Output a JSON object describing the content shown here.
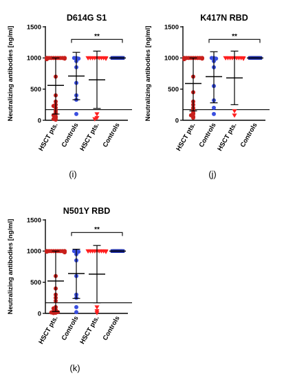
{
  "y_axis_label": "Neutralizing antibodies [ng/ml]",
  "categories": [
    "HSCT pts.",
    "Controls",
    "HSCT pts.",
    "Controls"
  ],
  "colors": {
    "hsct_first": "#c8201c",
    "controls_first": "#3a4fe0",
    "hsct_second": "#ff1f1f",
    "controls_second": "#1f2fa8"
  },
  "chart_data": [
    {
      "type": "scatter",
      "title": "D614G S1",
      "panel_label": "(i)",
      "ylim": [
        0,
        1500
      ],
      "yticks": [
        "0",
        "500",
        "1000",
        "1500"
      ],
      "significance": "**",
      "threshold": 170,
      "groups": [
        {
          "category": "HSCT pts.",
          "mean": 560,
          "sd_low": 100,
          "sd_high": 1000,
          "values": [
            1000,
            1000,
            1000,
            1000,
            1000,
            1000,
            1000,
            1000,
            1000,
            1000,
            1000,
            1000,
            1000,
            1000,
            990,
            980,
            700,
            400,
            300,
            250,
            230,
            200,
            150,
            120,
            100,
            80,
            60,
            40,
            20,
            10
          ]
        },
        {
          "category": "Controls",
          "mean": 710,
          "sd_low": 330,
          "sd_high": 1090,
          "values": [
            1000,
            1000,
            990,
            950,
            850,
            600,
            400,
            330,
            100
          ]
        },
        {
          "category": "HSCT pts.",
          "mean": 650,
          "sd_low": 190,
          "sd_high": 1110,
          "values": [
            1000,
            1000,
            1000,
            1000,
            1000,
            1000,
            1000,
            1000,
            1000,
            1000,
            990,
            100,
            40,
            20
          ]
        },
        {
          "category": "Controls",
          "mean": 1000,
          "sd_low": 1000,
          "sd_high": 1000,
          "values": [
            1000,
            1000,
            1000,
            1000,
            1000,
            1000,
            1000,
            1000,
            1000,
            1000
          ]
        }
      ]
    },
    {
      "type": "scatter",
      "title": "K417N RBD",
      "panel_label": "(j)",
      "ylim": [
        0,
        1500
      ],
      "yticks": [
        "0",
        "500",
        "1000",
        "1500"
      ],
      "significance": "**",
      "threshold": 170,
      "groups": [
        {
          "category": "HSCT pts.",
          "mean": 590,
          "sd_low": 150,
          "sd_high": 1000,
          "values": [
            1000,
            1000,
            1000,
            1000,
            1000,
            1000,
            1000,
            1000,
            1000,
            1000,
            1000,
            1000,
            990,
            980,
            700,
            450,
            300,
            250,
            200,
            180,
            150,
            120,
            100,
            80,
            60,
            40
          ]
        },
        {
          "category": "Controls",
          "mean": 700,
          "sd_low": 280,
          "sd_high": 1100,
          "values": [
            1000,
            1000,
            990,
            950,
            850,
            550,
            320,
            200,
            100
          ]
        },
        {
          "category": "HSCT pts.",
          "mean": 680,
          "sd_low": 250,
          "sd_high": 1110,
          "values": [
            1000,
            1000,
            1000,
            1000,
            1000,
            1000,
            1000,
            1000,
            1000,
            1000,
            990,
            150,
            80
          ]
        },
        {
          "category": "Controls",
          "mean": 1000,
          "sd_low": 1000,
          "sd_high": 1000,
          "values": [
            1000,
            1000,
            1000,
            1000,
            1000,
            1000,
            1000,
            1000,
            1000,
            1000
          ]
        }
      ]
    },
    {
      "type": "scatter",
      "title": "N501Y RBD",
      "panel_label": "(k)",
      "ylim": [
        0,
        1500
      ],
      "yticks": [
        "0",
        "500",
        "1000",
        "1500"
      ],
      "significance": "**",
      "threshold": 170,
      "groups": [
        {
          "category": "HSCT pts.",
          "mean": 520,
          "sd_low": 30,
          "sd_high": 1000,
          "values": [
            1000,
            1000,
            1000,
            1000,
            1000,
            1000,
            1000,
            1000,
            1000,
            1000,
            1000,
            1000,
            1000,
            990,
            980,
            600,
            400,
            300,
            250,
            200,
            100,
            80,
            60,
            40,
            30,
            20,
            15,
            10,
            5
          ]
        },
        {
          "category": "Controls",
          "mean": 640,
          "sd_low": 240,
          "sd_high": 1030,
          "values": [
            1000,
            1000,
            990,
            950,
            850,
            600,
            300,
            250,
            100,
            20
          ]
        },
        {
          "category": "HSCT pts.",
          "mean": 630,
          "sd_low": 170,
          "sd_high": 1090,
          "values": [
            1000,
            1000,
            1000,
            1000,
            1000,
            1000,
            1000,
            1000,
            1000,
            1000,
            990,
            100,
            40,
            10
          ]
        },
        {
          "category": "Controls",
          "mean": 1000,
          "sd_low": 1000,
          "sd_high": 1000,
          "values": [
            1000,
            1000,
            1000,
            1000,
            1000,
            1000,
            1000,
            1000,
            1000,
            1000
          ]
        }
      ]
    }
  ]
}
